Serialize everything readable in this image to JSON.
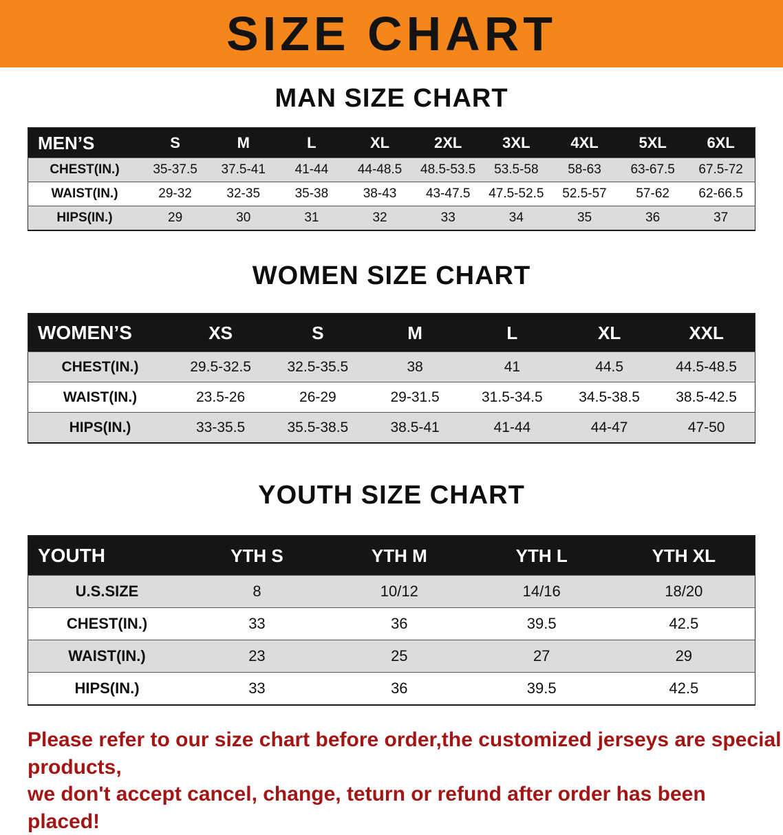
{
  "banner": {
    "title": "SIZE CHART",
    "bg_color": "#f5861c",
    "text_color": "#131313"
  },
  "sections": [
    {
      "title": "MAN SIZE CHART",
      "table": {
        "header": [
          "MEN’S",
          "S",
          "M",
          "L",
          "XL",
          "2XL",
          "3XL",
          "4XL",
          "5XL",
          "6XL"
        ],
        "rows": [
          [
            "CHEST(IN.)",
            "35-37.5",
            "37.5-41",
            "41-44",
            "44-48.5",
            "48.5-53.5",
            "53.5-58",
            "58-63",
            "63-67.5",
            "67.5-72"
          ],
          [
            "WAIST(IN.)",
            "29-32",
            "32-35",
            "35-38",
            "38-43",
            "43-47.5",
            "47.5-52.5",
            "52.5-57",
            "57-62",
            "62-66.5"
          ],
          [
            "HIPS(IN.)",
            "29",
            "30",
            "31",
            "32",
            "33",
            "34",
            "35",
            "36",
            "37"
          ]
        ]
      }
    },
    {
      "title": "WOMEN SIZE CHART",
      "table": {
        "header": [
          "WOMEN’S",
          "XS",
          "S",
          "M",
          "L",
          "XL",
          "XXL"
        ],
        "rows": [
          [
            "CHEST(IN.)",
            "29.5-32.5",
            "32.5-35.5",
            "38",
            "41",
            "44.5",
            "44.5-48.5"
          ],
          [
            "WAIST(IN.)",
            "23.5-26",
            "26-29",
            "29-31.5",
            "31.5-34.5",
            "34.5-38.5",
            "38.5-42.5"
          ],
          [
            "HIPS(IN.)",
            "33-35.5",
            "35.5-38.5",
            "38.5-41",
            "41-44",
            "44-47",
            "47-50"
          ]
        ]
      }
    },
    {
      "title": "YOUTH SIZE CHART",
      "table": {
        "header": [
          "YOUTH",
          "YTH S",
          "YTH M",
          "YTH L",
          "YTH XL"
        ],
        "rows": [
          [
            "U.S.SIZE",
            "8",
            "10/12",
            "14/16",
            "18/20"
          ],
          [
            "CHEST(IN.)",
            "33",
            "36",
            "39.5",
            "42.5"
          ],
          [
            "WAIST(IN.)",
            "23",
            "25",
            "27",
            "29"
          ],
          [
            "HIPS(IN.)",
            "33",
            "36",
            "39.5",
            "42.5"
          ]
        ]
      }
    }
  ],
  "footer": {
    "line1": "Please refer to our size chart before order,the customized jerseys are special products,",
    "line2": "we don't accept cancel, change, teturn or refund after order has been placed!",
    "text_color": "#a31616"
  }
}
